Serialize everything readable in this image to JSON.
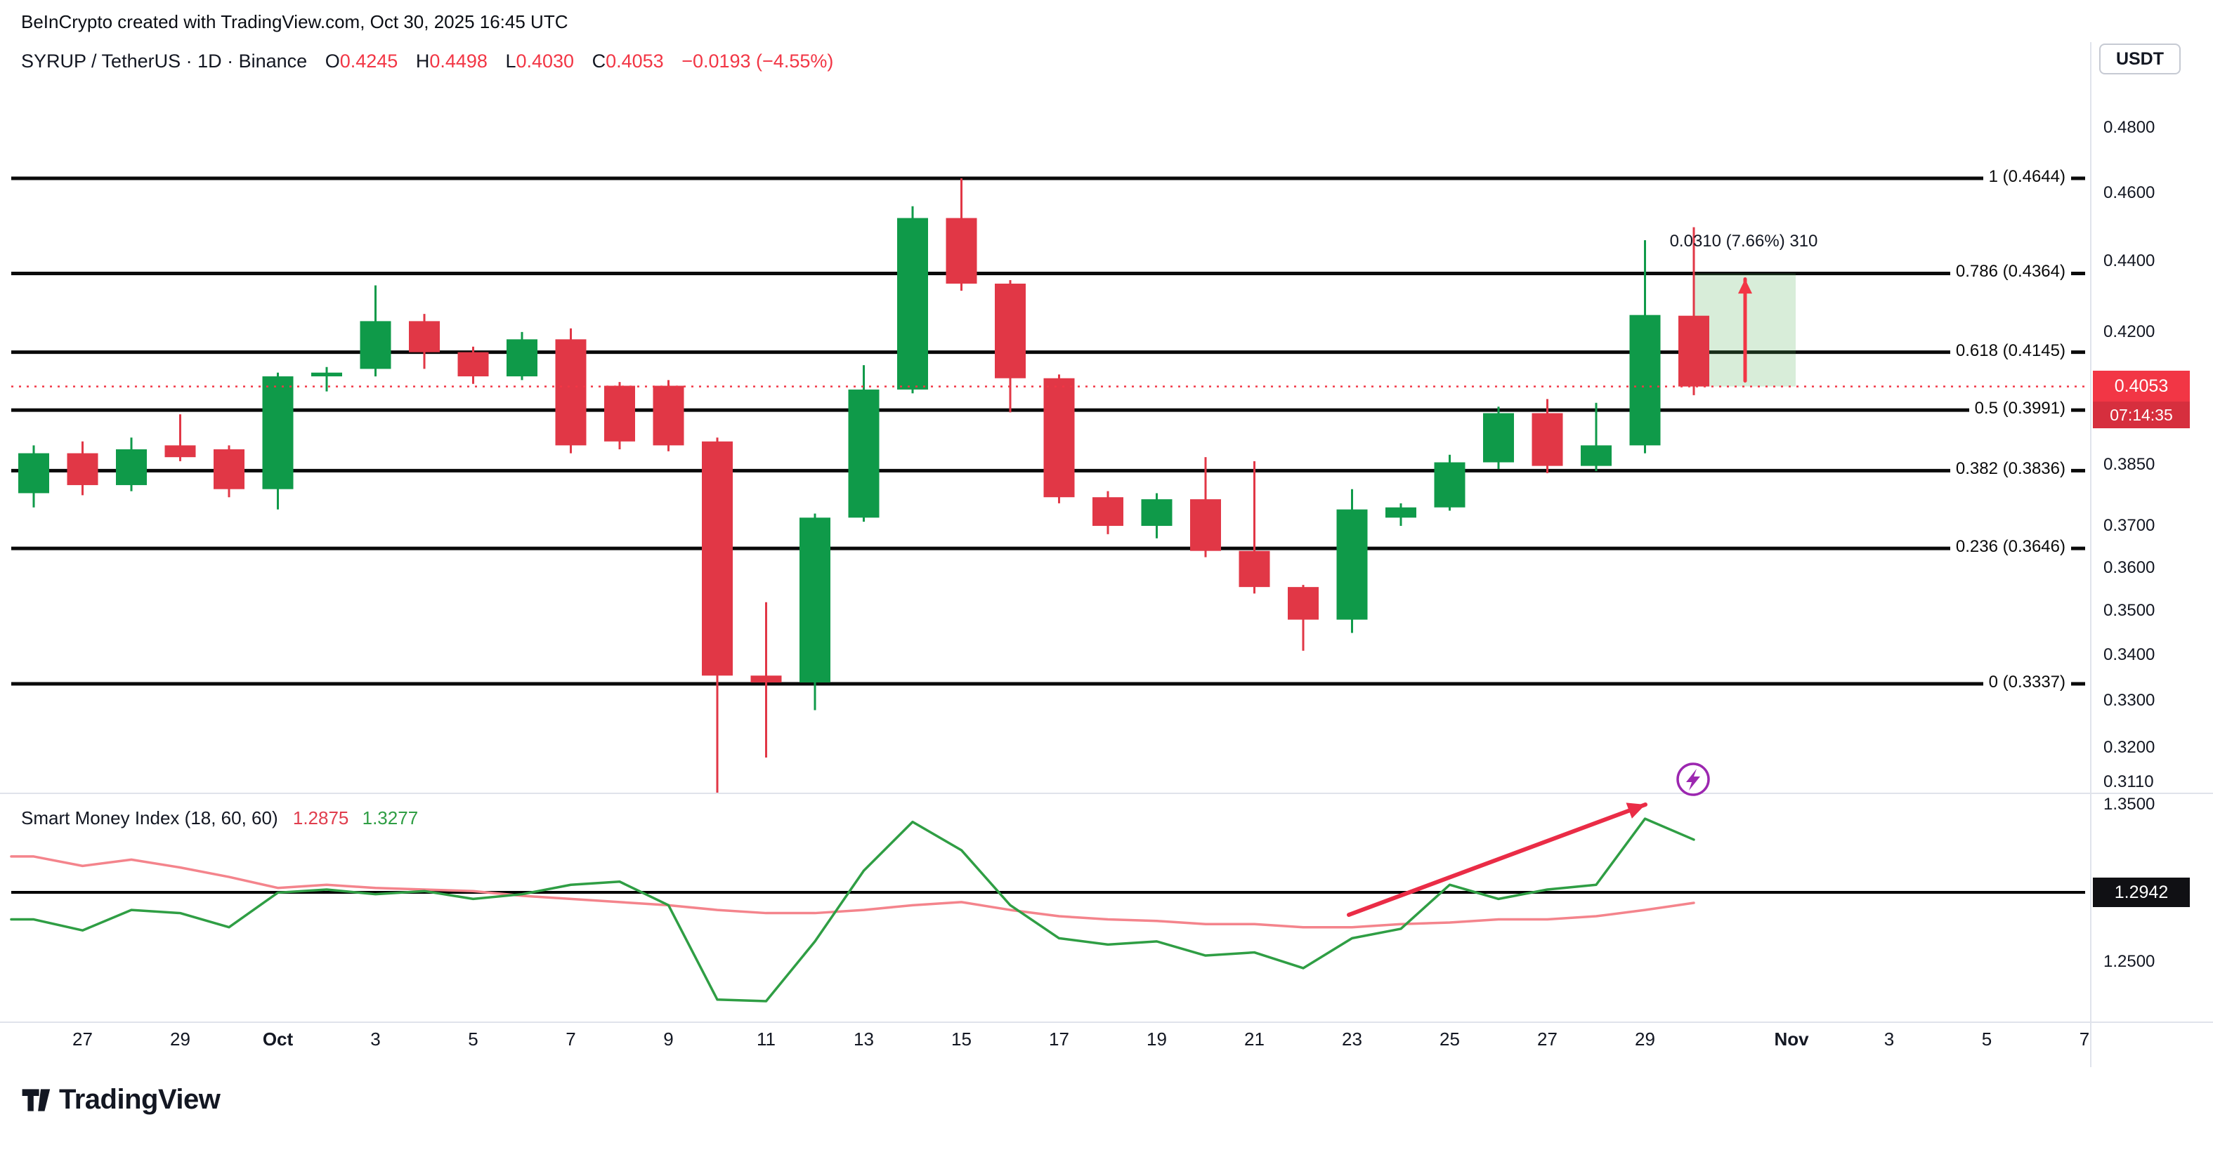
{
  "attribution": "BeInCrypto created with TradingView.com, Oct 30, 2025 16:45 UTC",
  "header": {
    "symbol_line": "SYRUP / TetherUS · 1D · Binance",
    "o_label": "O",
    "o": "0.4245",
    "h_label": "H",
    "h": "0.4498",
    "l_label": "L",
    "l": "0.4030",
    "c_label": "C",
    "c": "0.4053",
    "change": "−0.0193 (−4.55%)",
    "currency_button": "USDT"
  },
  "colors": {
    "up": "#0f9a49",
    "down": "#e13746",
    "accent_red": "#f23645",
    "text": "#131722",
    "fib_line": "#0a0a0a",
    "smi_green": "#2f9e44",
    "smi_red": "#f4848c",
    "level_line": "#000000",
    "separator": "#e0e3eb",
    "measure_fill": "rgba(76,175,80,0.22)",
    "measure_arrow": "#f23645",
    "trend_arrow": "#ea2c46",
    "lightning": "#9c27b0"
  },
  "chart_data": {
    "type": "candlestick",
    "title": "SYRUP / TetherUS · 1D · Binance",
    "price_scale": "log",
    "current_price": "0.4053",
    "countdown": "07:14:35",
    "candles": [
      {
        "date": "Sep 26",
        "o": 0.378,
        "h": 0.39,
        "l": 0.3745,
        "c": 0.388
      },
      {
        "date": "Sep 27",
        "o": 0.388,
        "h": 0.391,
        "l": 0.3775,
        "c": 0.38
      },
      {
        "date": "Sep 28",
        "o": 0.38,
        "h": 0.392,
        "l": 0.3785,
        "c": 0.389
      },
      {
        "date": "Sep 29",
        "o": 0.39,
        "h": 0.398,
        "l": 0.386,
        "c": 0.387
      },
      {
        "date": "Sep 30",
        "o": 0.389,
        "h": 0.39,
        "l": 0.377,
        "c": 0.379
      },
      {
        "date": "Oct 1",
        "o": 0.379,
        "h": 0.409,
        "l": 0.374,
        "c": 0.408
      },
      {
        "date": "Oct 2",
        "o": 0.408,
        "h": 0.4105,
        "l": 0.404,
        "c": 0.409
      },
      {
        "date": "Oct 3",
        "o": 0.41,
        "h": 0.433,
        "l": 0.408,
        "c": 0.423
      },
      {
        "date": "Oct 4",
        "o": 0.423,
        "h": 0.425,
        "l": 0.41,
        "c": 0.4145
      },
      {
        "date": "Oct 5",
        "o": 0.4145,
        "h": 0.416,
        "l": 0.406,
        "c": 0.408
      },
      {
        "date": "Oct 6",
        "o": 0.408,
        "h": 0.42,
        "l": 0.407,
        "c": 0.418
      },
      {
        "date": "Oct 7",
        "o": 0.418,
        "h": 0.421,
        "l": 0.388,
        "c": 0.39
      },
      {
        "date": "Oct 8",
        "o": 0.4055,
        "h": 0.4065,
        "l": 0.389,
        "c": 0.391
      },
      {
        "date": "Oct 9",
        "o": 0.4055,
        "h": 0.407,
        "l": 0.3885,
        "c": 0.39
      },
      {
        "date": "Oct 10",
        "o": 0.391,
        "h": 0.392,
        "l": 0.31,
        "c": 0.3355
      },
      {
        "date": "Oct 11",
        "o": 0.3355,
        "h": 0.352,
        "l": 0.318,
        "c": 0.334
      },
      {
        "date": "Oct 12",
        "o": 0.334,
        "h": 0.373,
        "l": 0.328,
        "c": 0.372
      },
      {
        "date": "Oct 13",
        "o": 0.372,
        "h": 0.411,
        "l": 0.371,
        "c": 0.4045
      },
      {
        "date": "Oct 14",
        "o": 0.4045,
        "h": 0.456,
        "l": 0.4035,
        "c": 0.4525
      },
      {
        "date": "Oct 15",
        "o": 0.4525,
        "h": 0.4644,
        "l": 0.4315,
        "c": 0.4335
      },
      {
        "date": "Oct 16",
        "o": 0.4335,
        "h": 0.4345,
        "l": 0.3985,
        "c": 0.4075
      },
      {
        "date": "Oct 17",
        "o": 0.4075,
        "h": 0.4085,
        "l": 0.3755,
        "c": 0.377
      },
      {
        "date": "Oct 18",
        "o": 0.377,
        "h": 0.3785,
        "l": 0.368,
        "c": 0.37
      },
      {
        "date": "Oct 19",
        "o": 0.37,
        "h": 0.378,
        "l": 0.367,
        "c": 0.3765
      },
      {
        "date": "Oct 20",
        "o": 0.3765,
        "h": 0.387,
        "l": 0.3625,
        "c": 0.364
      },
      {
        "date": "Oct 21",
        "o": 0.364,
        "h": 0.386,
        "l": 0.354,
        "c": 0.3555
      },
      {
        "date": "Oct 22",
        "o": 0.3555,
        "h": 0.356,
        "l": 0.341,
        "c": 0.348
      },
      {
        "date": "Oct 23",
        "o": 0.348,
        "h": 0.379,
        "l": 0.345,
        "c": 0.374
      },
      {
        "date": "Oct 24",
        "o": 0.372,
        "h": 0.3755,
        "l": 0.37,
        "c": 0.3745
      },
      {
        "date": "Oct 25",
        "o": 0.3745,
        "h": 0.3876,
        "l": 0.3737,
        "c": 0.3857
      },
      {
        "date": "Oct 26",
        "o": 0.3857,
        "h": 0.4,
        "l": 0.384,
        "c": 0.3983
      },
      {
        "date": "Oct 27",
        "o": 0.3983,
        "h": 0.402,
        "l": 0.383,
        "c": 0.3848
      },
      {
        "date": "Oct 28",
        "o": 0.3848,
        "h": 0.401,
        "l": 0.3835,
        "c": 0.39
      },
      {
        "date": "Oct 29",
        "o": 0.39,
        "h": 0.446,
        "l": 0.388,
        "c": 0.4247
      },
      {
        "date": "Oct 30",
        "o": 0.4245,
        "h": 0.4498,
        "l": 0.403,
        "c": 0.4053
      }
    ],
    "fib_levels": [
      {
        "label": "1 (0.4644)",
        "price": 0.4644
      },
      {
        "label": "0.786 (0.4364)",
        "price": 0.4364
      },
      {
        "label": "0.618 (0.4145)",
        "price": 0.4145
      },
      {
        "label": "0.5 (0.3991)",
        "price": 0.3991
      },
      {
        "label": "0.382 (0.3836)",
        "price": 0.3836
      },
      {
        "label": "0.236 (0.3646)",
        "price": 0.3646
      },
      {
        "label": "0 (0.3337)",
        "price": 0.3337
      }
    ],
    "price_axis_ticks": [
      "0.4800",
      "0.4600",
      "0.4400",
      "0.4200",
      "0.3850",
      "0.3700",
      "0.3600",
      "0.3500",
      "0.3400",
      "0.3300",
      "0.3200",
      "0.3110"
    ],
    "measurement": {
      "label": "0.0310 (7.66%) 310",
      "from_price": 0.4053,
      "to_price": 0.4364
    },
    "x_axis_ticks": [
      {
        "label": "27",
        "i": 1
      },
      {
        "label": "29",
        "i": 3
      },
      {
        "label": "Oct",
        "i": 5,
        "bold": true
      },
      {
        "label": "3",
        "i": 7
      },
      {
        "label": "5",
        "i": 9
      },
      {
        "label": "7",
        "i": 11
      },
      {
        "label": "9",
        "i": 13
      },
      {
        "label": "11",
        "i": 15
      },
      {
        "label": "13",
        "i": 17
      },
      {
        "label": "15",
        "i": 19
      },
      {
        "label": "17",
        "i": 21
      },
      {
        "label": "19",
        "i": 23
      },
      {
        "label": "21",
        "i": 25
      },
      {
        "label": "23",
        "i": 27
      },
      {
        "label": "25",
        "i": 29
      },
      {
        "label": "27",
        "i": 31
      },
      {
        "label": "29",
        "i": 33
      },
      {
        "label": "Nov",
        "i": 36,
        "bold": true
      },
      {
        "label": "3",
        "i": 38
      },
      {
        "label": "5",
        "i": 40
      },
      {
        "label": "7",
        "i": 42
      }
    ],
    "smi": {
      "title": "Smart Money Index (18, 60, 60)",
      "red_value": "1.2875",
      "green_value": "1.3277",
      "level": "1.2942",
      "axis_ticks": [
        "1.3500",
        "1.2500"
      ],
      "green_series": [
        1.277,
        1.27,
        1.283,
        1.281,
        1.272,
        1.294,
        1.296,
        1.293,
        1.295,
        1.29,
        1.293,
        1.299,
        1.301,
        1.286,
        1.226,
        1.225,
        1.263,
        1.308,
        1.339,
        1.321,
        1.286,
        1.265,
        1.261,
        1.263,
        1.254,
        1.256,
        1.246,
        1.265,
        1.271,
        1.299,
        1.29,
        1.296,
        1.299,
        1.341,
        1.3277
      ],
      "red_series": [
        1.317,
        1.311,
        1.315,
        1.31,
        1.304,
        1.297,
        1.299,
        1.297,
        1.296,
        1.295,
        1.292,
        1.29,
        1.288,
        1.286,
        1.283,
        1.281,
        1.281,
        1.283,
        1.286,
        1.288,
        1.283,
        1.279,
        1.277,
        1.276,
        1.274,
        1.274,
        1.272,
        1.272,
        1.274,
        1.275,
        1.277,
        1.277,
        1.279,
        1.283,
        1.2875
      ]
    }
  },
  "logo_text": "TradingView"
}
